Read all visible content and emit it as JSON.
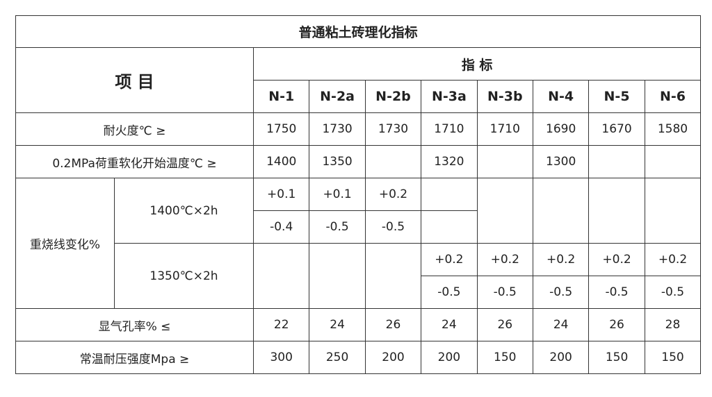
{
  "title": "普通粘土砖理化指标",
  "item_header": "项 目",
  "index_header": "指  标",
  "grades": [
    "N-1",
    "N-2a",
    "N-2b",
    "N-3a",
    "N-3b",
    "N-4",
    "N-5",
    "N-6"
  ],
  "rows": {
    "refractoriness": {
      "label": "耐火度℃  ≥",
      "values": [
        "1750",
        "1730",
        "1730",
        "1710",
        "1710",
        "1690",
        "1670",
        "1580"
      ]
    },
    "softening": {
      "label": "0.2MPa荷重软化开始温度℃  ≥",
      "values": [
        "1400",
        "1350",
        "",
        "1320",
        "",
        "1300",
        "",
        ""
      ]
    },
    "reheat": {
      "label": "重烧线变化%",
      "c1400": {
        "label": "1400℃×2h",
        "plus": [
          "+0.1",
          "+0.1",
          "+0.2",
          ""
        ],
        "minus": [
          "-0.4",
          "-0.5",
          "-0.5",
          ""
        ]
      },
      "c1350": {
        "label": "1350℃×2h",
        "plus": [
          "+0.2",
          "+0.2",
          "+0.2",
          "+0.2",
          "+0.2"
        ],
        "minus": [
          "-0.5",
          "-0.5",
          "-0.5",
          "-0.5",
          "-0.5"
        ]
      }
    },
    "porosity": {
      "label": "显气孔率%    ≤",
      "values": [
        "22",
        "24",
        "26",
        "24",
        "26",
        "24",
        "26",
        "28"
      ]
    },
    "strength": {
      "label": "常温耐压强度Mpa    ≥",
      "values": [
        "300",
        "250",
        "200",
        "200",
        "150",
        "200",
        "150",
        "150"
      ]
    }
  }
}
